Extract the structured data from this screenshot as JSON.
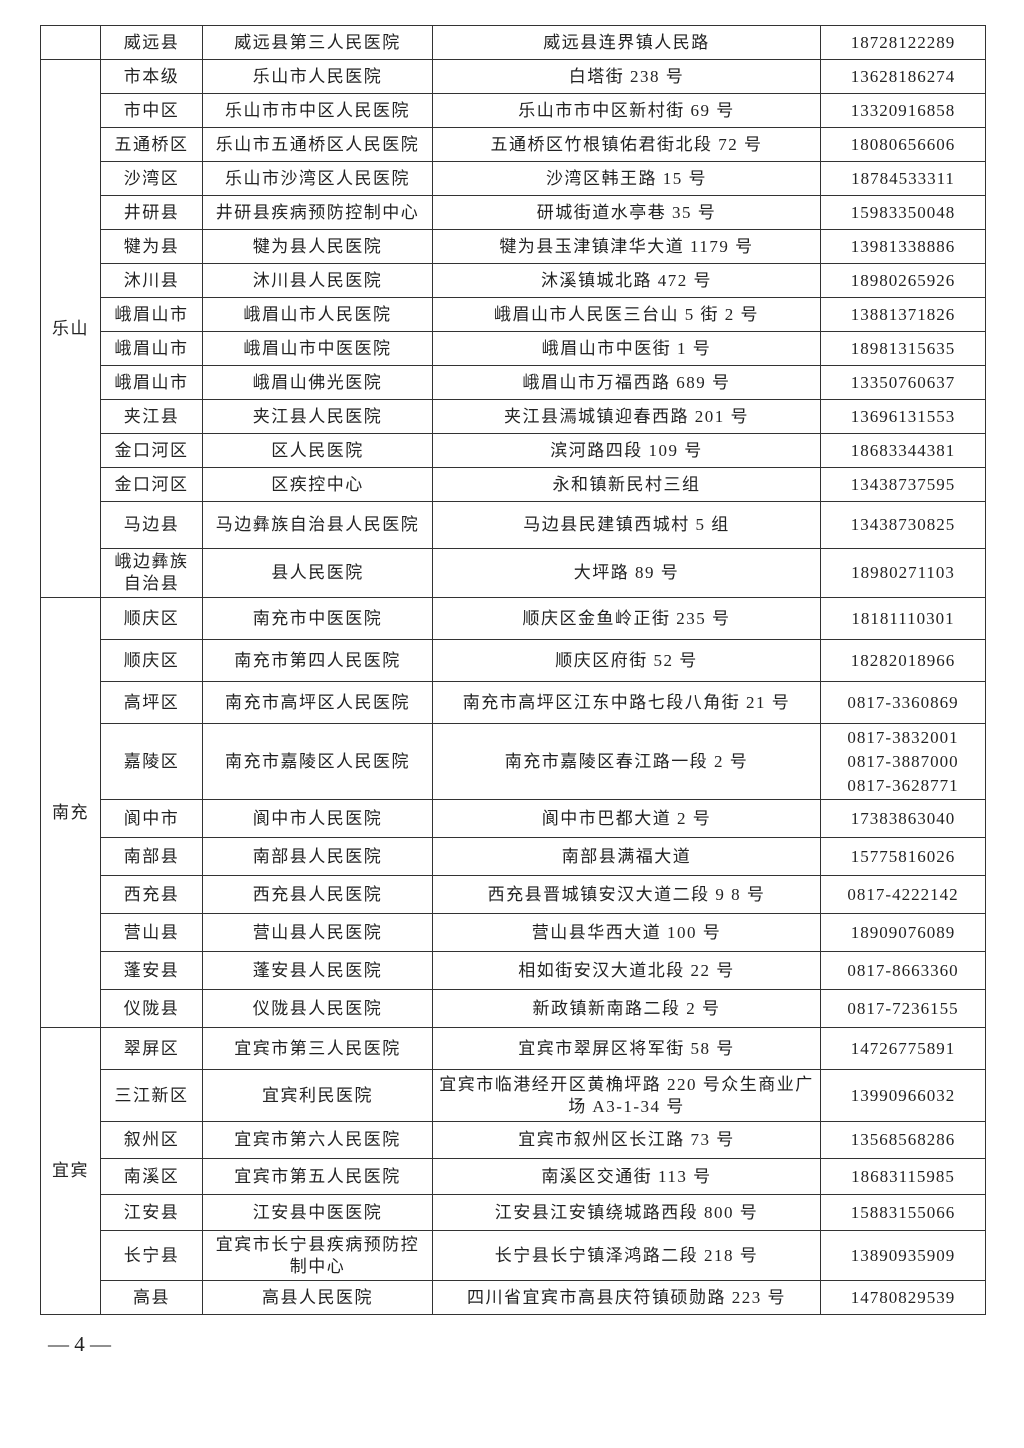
{
  "table": {
    "groups": [
      {
        "rows": [
          [
            "威远县",
            "威远县第三人民医院",
            "威远县连界镇人民路",
            "18728122289"
          ]
        ]
      },
      {
        "region": "乐山",
        "rows": [
          [
            "市本级",
            "乐山市人民医院",
            "白塔街 238 号",
            "13628186274"
          ],
          [
            "市中区",
            "乐山市市中区人民医院",
            "乐山市市中区新村街 69 号",
            "13320916858"
          ],
          [
            "五通桥区",
            "乐山市五通桥区人民医院",
            "五通桥区竹根镇佑君街北段 72 号",
            "18080656606"
          ],
          [
            "沙湾区",
            "乐山市沙湾区人民医院",
            "沙湾区韩王路 15 号",
            "18784533311"
          ],
          [
            "井研县",
            "井研县疾病预防控制中心",
            "研城街道水亭巷 35 号",
            "15983350048"
          ],
          [
            "犍为县",
            "犍为县人民医院",
            "犍为县玉津镇津华大道 1179 号",
            "13981338886"
          ],
          [
            "沐川县",
            "沐川县人民医院",
            "沐溪镇城北路 472 号",
            "18980265926"
          ],
          [
            "峨眉山市",
            "峨眉山市人民医院",
            "峨眉山市人民医三台山 5 街 2 号",
            "13881371826"
          ],
          [
            "峨眉山市",
            "峨眉山市中医医院",
            "峨眉山市中医街 1 号",
            "18981315635"
          ],
          [
            "峨眉山市",
            "峨眉山佛光医院",
            "峨眉山市万福西路 689 号",
            "13350760637"
          ],
          [
            "夹江县",
            "夹江县人民医院",
            "夹江县漹城镇迎春西路 201 号",
            "13696131553"
          ],
          [
            "金口河区",
            "区人民医院",
            "滨河路四段 109 号",
            "18683344381"
          ],
          [
            "金口河区",
            "区疾控中心",
            "永和镇新民村三组",
            "13438737595"
          ],
          [
            "马边县",
            "马边彝族自治县人民医院",
            "马边县民建镇西城村 5 组",
            "13438730825"
          ],
          [
            "峨边彝族自治县",
            "县人民医院",
            "大坪路 89 号",
            "18980271103"
          ]
        ]
      },
      {
        "region": "南充",
        "rows": [
          [
            "顺庆区",
            "南充市中医医院",
            "顺庆区金鱼岭正街 235 号",
            "18181110301"
          ],
          [
            "顺庆区",
            "南充市第四人民医院",
            "顺庆区府街 52 号",
            "18282018966"
          ],
          [
            "高坪区",
            "南充市高坪区人民医院",
            "南充市高坪区江东中路七段八角街 21 号",
            "0817-3360869"
          ],
          [
            "嘉陵区",
            "南充市嘉陵区人民医院",
            "南充市嘉陵区春江路一段 2 号",
            [
              "0817-3832001",
              "0817-3887000",
              "0817-3628771"
            ]
          ],
          [
            "阆中市",
            "阆中市人民医院",
            "阆中市巴都大道 2 号",
            "17383863040"
          ],
          [
            "南部县",
            "南部县人民医院",
            "南部县满福大道",
            "15775816026"
          ],
          [
            "西充县",
            "西充县人民医院",
            "西充县晋城镇安汉大道二段 9 8 号",
            "0817-4222142"
          ],
          [
            "营山县",
            "营山县人民医院",
            "营山县华西大道 100 号",
            "18909076089"
          ],
          [
            "蓬安县",
            "蓬安县人民医院",
            "相如街安汉大道北段 22 号",
            "0817-8663360"
          ],
          [
            "仪陇县",
            "仪陇县人民医院",
            "新政镇新南路二段 2 号",
            "0817-7236155"
          ]
        ]
      },
      {
        "region": "宜宾",
        "rows": [
          [
            "翠屏区",
            "宜宾市第三人民医院",
            "宜宾市翠屏区将军街 58 号",
            "14726775891"
          ],
          [
            "三江新区",
            "宜宾利民医院",
            "宜宾市临港经开区黄桷坪路 220 号众生商业广场 A3-1-34 号",
            "13990966032"
          ],
          [
            "叙州区",
            "宜宾市第六人民医院",
            "宜宾市叙州区长江路 73 号",
            "13568568286"
          ],
          [
            "南溪区",
            "宜宾市第五人民医院",
            "南溪区交通街 113 号",
            "18683115985"
          ],
          [
            "江安县",
            "江安县中医医院",
            "江安县江安镇绕城路西段 800 号",
            "15883155066"
          ],
          [
            "长宁县",
            "宜宾市长宁县疾病预防控制中心",
            "长宁县长宁镇泽鸿路二段 218 号",
            "13890935909"
          ],
          [
            "高县",
            "高县人民医院",
            "四川省宜宾市高县庆符镇硕勋路 223 号",
            "14780829539"
          ]
        ]
      }
    ]
  },
  "footer": {
    "page": "— 4 —"
  }
}
